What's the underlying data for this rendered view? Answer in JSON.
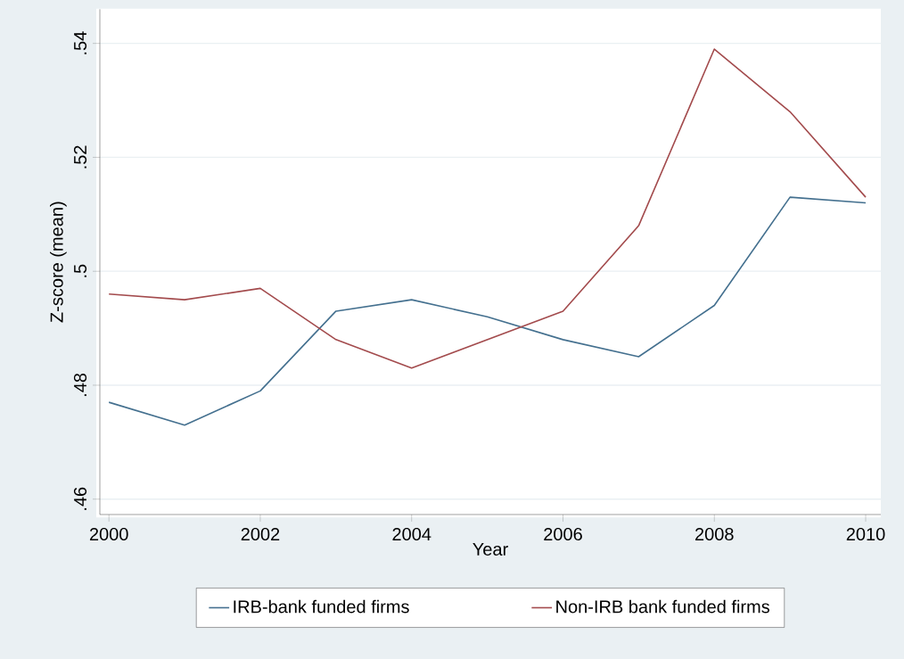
{
  "chart_data": {
    "type": "line",
    "xlabel": "Year",
    "ylabel": "Z-score (mean)",
    "x": [
      2000,
      2001,
      2002,
      2003,
      2004,
      2005,
      2006,
      2007,
      2008,
      2009,
      2010
    ],
    "series": [
      {
        "name": "IRB-bank funded firms",
        "color": "#44708f",
        "values": [
          0.477,
          0.473,
          0.479,
          0.493,
          0.495,
          0.492,
          0.488,
          0.485,
          0.494,
          0.513,
          0.512
        ]
      },
      {
        "name": "Non-IRB bank funded firms",
        "color": "#a34b4d",
        "values": [
          0.496,
          0.495,
          0.497,
          0.488,
          0.483,
          0.488,
          0.493,
          0.508,
          0.539,
          0.528,
          0.513
        ]
      }
    ],
    "xlim": [
      1999.88,
      2010.2
    ],
    "ylim": [
      0.4573,
      0.546
    ],
    "xticks": [
      2000,
      2002,
      2004,
      2006,
      2008,
      2010
    ],
    "yticks": [
      {
        "value": 0.46,
        "label": ".46"
      },
      {
        "value": 0.48,
        "label": ".48"
      },
      {
        "value": 0.5,
        "label": ".5"
      },
      {
        "value": 0.52,
        "label": ".52"
      },
      {
        "value": 0.54,
        "label": ".54"
      }
    ],
    "grid": "y",
    "legend": "bottom",
    "marker": "none",
    "line_style": "solid"
  }
}
